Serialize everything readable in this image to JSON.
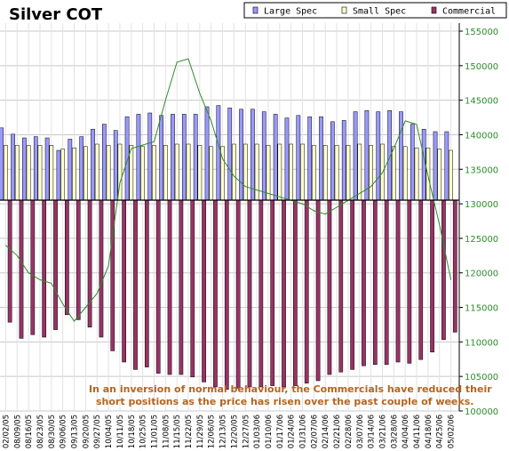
{
  "chart_data": {
    "type": "bar",
    "title": "Silver COT",
    "xlabel": "",
    "ylabel": "",
    "ylim": [
      100000,
      155000
    ],
    "y_ticks": [
      100000,
      105000,
      110000,
      115000,
      120000,
      125000,
      130000,
      135000,
      140000,
      145000,
      150000,
      155000
    ],
    "y_tick_labels": [
      "100000",
      "105000",
      "110000",
      "115000",
      "120000",
      "125000",
      "130000",
      "135000",
      "140000",
      "145000",
      "150000",
      "155000"
    ],
    "grid": true,
    "legend_position": "top-right",
    "categories": [
      "02/02/05",
      "08/09/05",
      "08/16/05",
      "08/23/05",
      "08/30/05",
      "09/06/05",
      "09/13/05",
      "09/20/05",
      "09/27/05",
      "10/04/05",
      "10/11/05",
      "10/18/05",
      "10/25/05",
      "11/01/05",
      "11/08/05",
      "11/15/05",
      "11/22/05",
      "11/29/05",
      "12/06/05",
      "12/13/05",
      "12/20/05",
      "12/27/05",
      "01/03/06",
      "01/10/06",
      "01/17/06",
      "01/24/06",
      "01/31/06",
      "02/07/06",
      "02/14/06",
      "02/21/06",
      "02/28/06",
      "03/07/06",
      "03/14/06",
      "03/21/06",
      "03/28/06",
      "04/04/06",
      "04/11/06",
      "04/18/06",
      "04/25/06",
      "05/02/06"
    ],
    "relative_series_note": "",
    "series": [
      {
        "name": "Large Spec",
        "color": "#9999ff",
        "values": [
          58,
          53,
          50,
          51,
          50,
          40,
          49,
          51,
          57,
          61,
          56,
          67,
          69,
          70,
          68,
          69,
          69,
          69,
          75,
          76,
          74,
          73,
          73,
          71,
          69,
          66,
          68,
          67,
          67,
          63,
          64,
          71,
          72,
          71,
          72,
          71,
          61,
          57,
          55,
          55
        ]
      },
      {
        "name": "Small Spec",
        "color": "#ffffcc",
        "values": [
          44,
          44,
          44,
          44,
          44,
          41,
          42,
          43,
          45,
          44,
          45,
          44,
          43,
          44,
          44,
          45,
          45,
          44,
          43,
          43,
          45,
          45,
          45,
          44,
          45,
          45,
          45,
          44,
          44,
          44,
          44,
          45,
          44,
          45,
          43,
          43,
          42,
          42,
          41,
          40
        ]
      },
      {
        "name": "Commercial",
        "color": "#993366",
        "values": [
          -98,
          -111,
          -108,
          -110,
          -104,
          -92,
          -96,
          -102,
          -110,
          -121,
          -130,
          -136,
          -134,
          -139,
          -140,
          -140,
          -142,
          -146,
          -150,
          -152,
          -151,
          -150,
          -150,
          -149,
          -150,
          -149,
          -147,
          -145,
          -140,
          -138,
          -136,
          -133,
          -132,
          -132,
          -130,
          -131,
          -128,
          -122,
          -112,
          -106
        ]
      },
      {
        "name": "",
        "color": "#2e8b2e",
        "axis": "right",
        "values": [
          124000,
          122500,
          120000,
          119000,
          118500,
          115500,
          113000,
          115000,
          117000,
          121000,
          133000,
          138000,
          138500,
          139000,
          145000,
          150500,
          151000,
          146000,
          142000,
          136500,
          134000,
          132500,
          132000,
          131500,
          131000,
          130500,
          130000,
          129000,
          128500,
          129500,
          130500,
          131500,
          132500,
          134500,
          138000,
          142000,
          141500,
          134000,
          127000,
          119000
        ]
      }
    ],
    "annotation": "In an inversion of normal behaviour, the Commercials have reduced their short positions as the price has risen over the past couple of weeks."
  },
  "legend": {
    "items": [
      {
        "label": "Large Spec",
        "color": "#9999ff"
      },
      {
        "label": "Small Spec",
        "color": "#ffffcc"
      },
      {
        "label": "Commercial",
        "color": "#993366"
      }
    ]
  }
}
